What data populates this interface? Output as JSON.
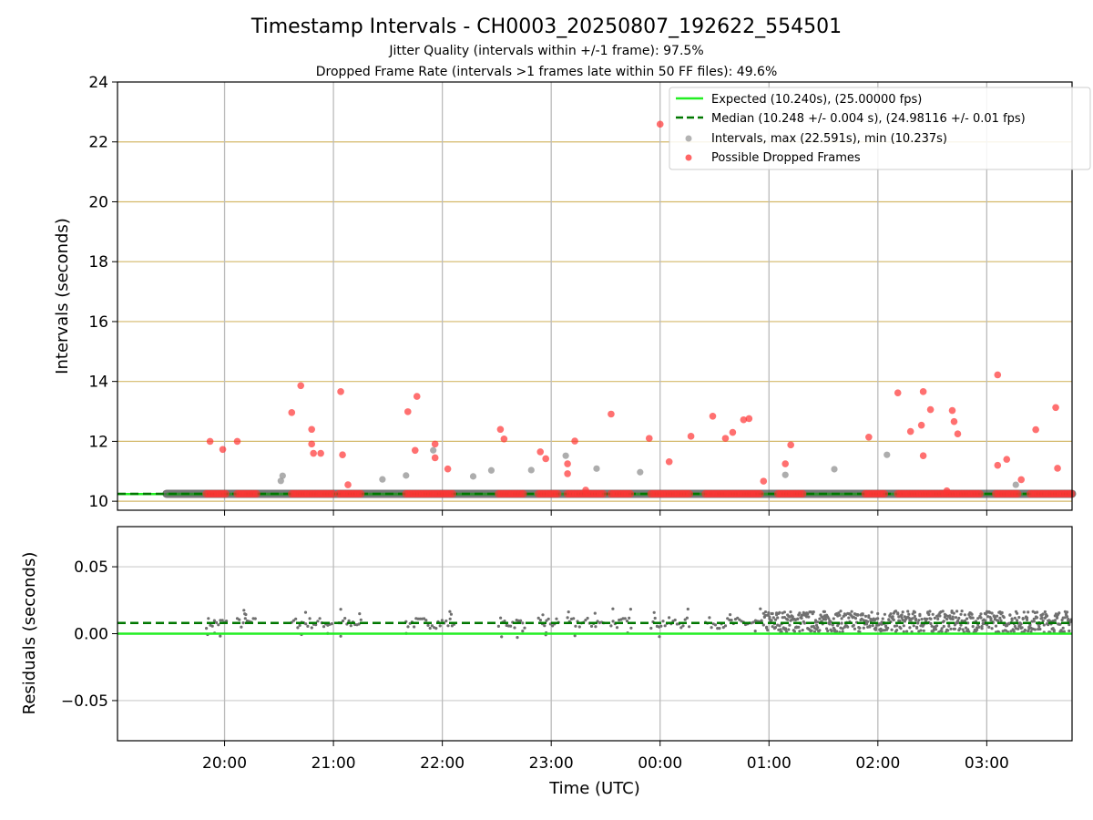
{
  "title": "Timestamp Intervals - CH0003_20250807_192622_554501",
  "subtitle_1": "Jitter Quality (intervals within +/-1 frame): 97.5%",
  "subtitle_2": "Dropped Frame Rate (intervals >1 frames late within 50 FF files): 49.6%",
  "colors": {
    "expected": "#22ee22",
    "median": "#007700",
    "intervals": "#999999",
    "dropped": "#ff3333",
    "hline": "#d4b96a",
    "residual": "#707070"
  },
  "chart_data": [
    {
      "type": "scatter",
      "panel": "intervals",
      "ylabel": "Intervals (seconds)",
      "xlabel": "",
      "ylim": [
        9.7,
        24
      ],
      "yticks": [
        10,
        12,
        14,
        16,
        18,
        20,
        22,
        24
      ],
      "x_time_range": [
        "19:01",
        "03:47"
      ],
      "x_ticks": [
        "20:00",
        "21:00",
        "22:00",
        "23:00",
        "00:00",
        "01:00",
        "02:00",
        "03:00"
      ],
      "grid": "vertical at time ticks; horizontal tan lines at 10-24",
      "legend_position": "top-right",
      "legend": [
        "Expected (10.240s), (25.00000 fps)",
        "Median (10.248 +/- 0.004 s), (24.98116 +/- 0.01 fps)",
        "Intervals, max (22.591s), min (10.237s)",
        "Possible Dropped Frames"
      ],
      "expected_interval": 10.24,
      "median_interval": 10.248,
      "baseline_interval_start": "19:28",
      "dropped_baseline_segments": [
        [
          "19:50",
          "20:02"
        ],
        [
          "20:07",
          "20:18"
        ],
        [
          "20:37",
          "21:00"
        ],
        [
          "21:03",
          "21:16"
        ],
        [
          "21:40",
          "22:07"
        ],
        [
          "22:31",
          "22:46"
        ],
        [
          "22:53",
          "23:05"
        ],
        [
          "23:09",
          "23:29"
        ],
        [
          "23:33",
          "23:45"
        ],
        [
          "23:55",
          "00:17"
        ],
        [
          "00:25",
          "00:56"
        ],
        [
          "01:05",
          "01:20"
        ],
        [
          "01:53",
          "02:05"
        ],
        [
          "02:11",
          "02:57"
        ],
        [
          "03:05",
          "03:18"
        ],
        [
          "03:24",
          "03:47"
        ]
      ],
      "interval_points": [
        {
          "x": "20:31",
          "y": 10.68
        },
        {
          "x": "20:32",
          "y": 10.85
        },
        {
          "x": "21:27",
          "y": 10.73
        },
        {
          "x": "21:40",
          "y": 10.86
        },
        {
          "x": "21:55",
          "y": 11.7
        },
        {
          "x": "22:17",
          "y": 10.83
        },
        {
          "x": "22:27",
          "y": 11.03
        },
        {
          "x": "22:49",
          "y": 11.04
        },
        {
          "x": "23:08",
          "y": 11.52
        },
        {
          "x": "23:25",
          "y": 11.09
        },
        {
          "x": "23:49",
          "y": 10.97
        },
        {
          "x": "01:09",
          "y": 10.88
        },
        {
          "x": "01:36",
          "y": 11.07
        },
        {
          "x": "02:05",
          "y": 11.55
        },
        {
          "x": "03:16",
          "y": 10.55
        }
      ],
      "dropped_points": [
        {
          "x": "19:52",
          "y": 12.0
        },
        {
          "x": "19:59",
          "y": 11.73
        },
        {
          "x": "20:07",
          "y": 12.0
        },
        {
          "x": "20:37",
          "y": 12.96
        },
        {
          "x": "20:42",
          "y": 13.86
        },
        {
          "x": "20:48",
          "y": 12.4
        },
        {
          "x": "20:48",
          "y": 11.91
        },
        {
          "x": "20:49",
          "y": 11.6
        },
        {
          "x": "20:53",
          "y": 11.6
        },
        {
          "x": "21:04",
          "y": 13.66
        },
        {
          "x": "21:05",
          "y": 11.55
        },
        {
          "x": "21:08",
          "y": 10.55
        },
        {
          "x": "21:41",
          "y": 12.99
        },
        {
          "x": "21:46",
          "y": 13.5
        },
        {
          "x": "21:45",
          "y": 11.7
        },
        {
          "x": "21:56",
          "y": 11.91
        },
        {
          "x": "21:56",
          "y": 11.45
        },
        {
          "x": "22:03",
          "y": 11.08
        },
        {
          "x": "22:32",
          "y": 12.4
        },
        {
          "x": "22:34",
          "y": 12.08
        },
        {
          "x": "22:54",
          "y": 11.65
        },
        {
          "x": "22:57",
          "y": 11.42
        },
        {
          "x": "23:09",
          "y": 11.25
        },
        {
          "x": "23:09",
          "y": 10.92
        },
        {
          "x": "23:13",
          "y": 12.01
        },
        {
          "x": "23:19",
          "y": 10.37
        },
        {
          "x": "23:33",
          "y": 12.91
        },
        {
          "x": "23:54",
          "y": 12.1
        },
        {
          "x": "00:00",
          "y": 22.59
        },
        {
          "x": "00:05",
          "y": 11.32
        },
        {
          "x": "00:17",
          "y": 12.17
        },
        {
          "x": "00:29",
          "y": 12.84
        },
        {
          "x": "00:36",
          "y": 12.1
        },
        {
          "x": "00:40",
          "y": 12.3
        },
        {
          "x": "00:46",
          "y": 12.72
        },
        {
          "x": "00:49",
          "y": 12.76
        },
        {
          "x": "00:57",
          "y": 10.67
        },
        {
          "x": "01:09",
          "y": 11.25
        },
        {
          "x": "01:12",
          "y": 11.88
        },
        {
          "x": "01:55",
          "y": 12.14
        },
        {
          "x": "02:11",
          "y": 13.62
        },
        {
          "x": "02:18",
          "y": 12.33
        },
        {
          "x": "02:24",
          "y": 12.54
        },
        {
          "x": "02:25",
          "y": 13.66
        },
        {
          "x": "02:25",
          "y": 11.52
        },
        {
          "x": "02:29",
          "y": 13.06
        },
        {
          "x": "02:38",
          "y": 10.35
        },
        {
          "x": "02:41",
          "y": 13.03
        },
        {
          "x": "02:42",
          "y": 12.66
        },
        {
          "x": "02:44",
          "y": 12.25
        },
        {
          "x": "03:06",
          "y": 14.22
        },
        {
          "x": "03:06",
          "y": 11.2
        },
        {
          "x": "03:11",
          "y": 11.4
        },
        {
          "x": "03:19",
          "y": 10.72
        },
        {
          "x": "03:27",
          "y": 12.39
        },
        {
          "x": "03:38",
          "y": 13.13
        },
        {
          "x": "03:39",
          "y": 11.1
        }
      ]
    },
    {
      "type": "scatter",
      "panel": "residuals",
      "ylabel": "Residuals (seconds)",
      "xlabel": "Time (UTC)",
      "ylim": [
        -0.08,
        0.08
      ],
      "yticks": [
        0.05,
        0.0,
        -0.05
      ],
      "ytick_labels": [
        "0.05",
        "0.00",
        "−0.05"
      ],
      "x_ticks": [
        "20:00",
        "21:00",
        "22:00",
        "23:00",
        "00:00",
        "01:00",
        "02:00",
        "03:00"
      ],
      "grid": "on",
      "expected_residual": 0.0,
      "median_residual": 0.008,
      "residual_band_before": {
        "range": [
          "19:28",
          "00:57"
        ],
        "center": 0.008,
        "spread": 0.004,
        "outliers_max": 0.019,
        "outliers_min": -0.003
      },
      "residual_band_after": {
        "range": [
          "00:57",
          "03:47"
        ],
        "low": 0.001,
        "high": 0.017
      }
    }
  ]
}
